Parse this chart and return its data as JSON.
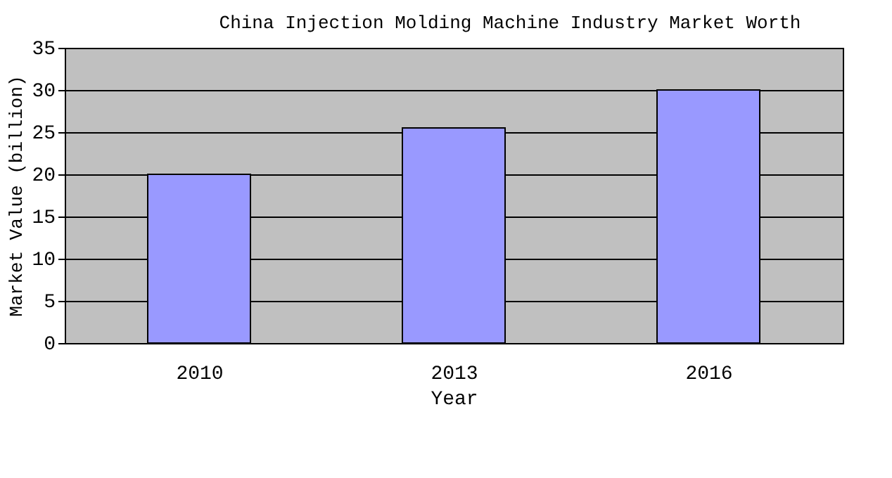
{
  "chart_data": {
    "type": "bar",
    "title": "China Injection Molding Machine Industry Market Worth",
    "xlabel": "Year",
    "ylabel": "Market Value (billion)",
    "categories": [
      "2010",
      "2013",
      "2016"
    ],
    "values": [
      20,
      25.5,
      30
    ],
    "color": "#9999ff",
    "ylim": [
      0,
      35
    ],
    "yticks": [
      0,
      5,
      10,
      15,
      20,
      25,
      30,
      35
    ],
    "grid": "y"
  }
}
